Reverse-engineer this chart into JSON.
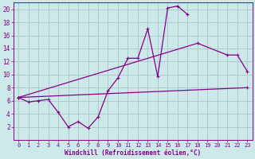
{
  "xlabel": "Windchill (Refroidissement éolien,°C)",
  "bg_color": "#cce8e8",
  "grid_color": "#aacccc",
  "line_color": "#880088",
  "xlim": [
    -0.5,
    23.5
  ],
  "ylim": [
    0,
    21
  ],
  "xticks": [
    0,
    1,
    2,
    3,
    4,
    5,
    6,
    7,
    8,
    9,
    10,
    11,
    12,
    13,
    14,
    15,
    16,
    17,
    18,
    19,
    20,
    21,
    22,
    23
  ],
  "yticks": [
    2,
    4,
    6,
    8,
    10,
    12,
    14,
    16,
    18,
    20
  ],
  "line1_x": [
    0,
    1,
    2,
    3,
    4,
    5,
    6,
    7,
    8,
    9,
    10,
    11,
    12,
    13,
    14,
    15,
    16,
    17
  ],
  "line1_y": [
    6.5,
    5.8,
    6.0,
    6.2,
    4.2,
    2.0,
    2.8,
    1.8,
    3.5,
    7.5,
    9.5,
    12.5,
    12.5,
    17.0,
    9.7,
    20.2,
    20.5,
    19.2
  ],
  "line2_x": [
    0,
    18,
    21,
    22,
    23
  ],
  "line2_y": [
    6.5,
    14.8,
    13.0,
    13.0,
    10.5
  ],
  "line3_x": [
    0,
    23
  ],
  "line3_y": [
    6.5,
    8.0
  ]
}
